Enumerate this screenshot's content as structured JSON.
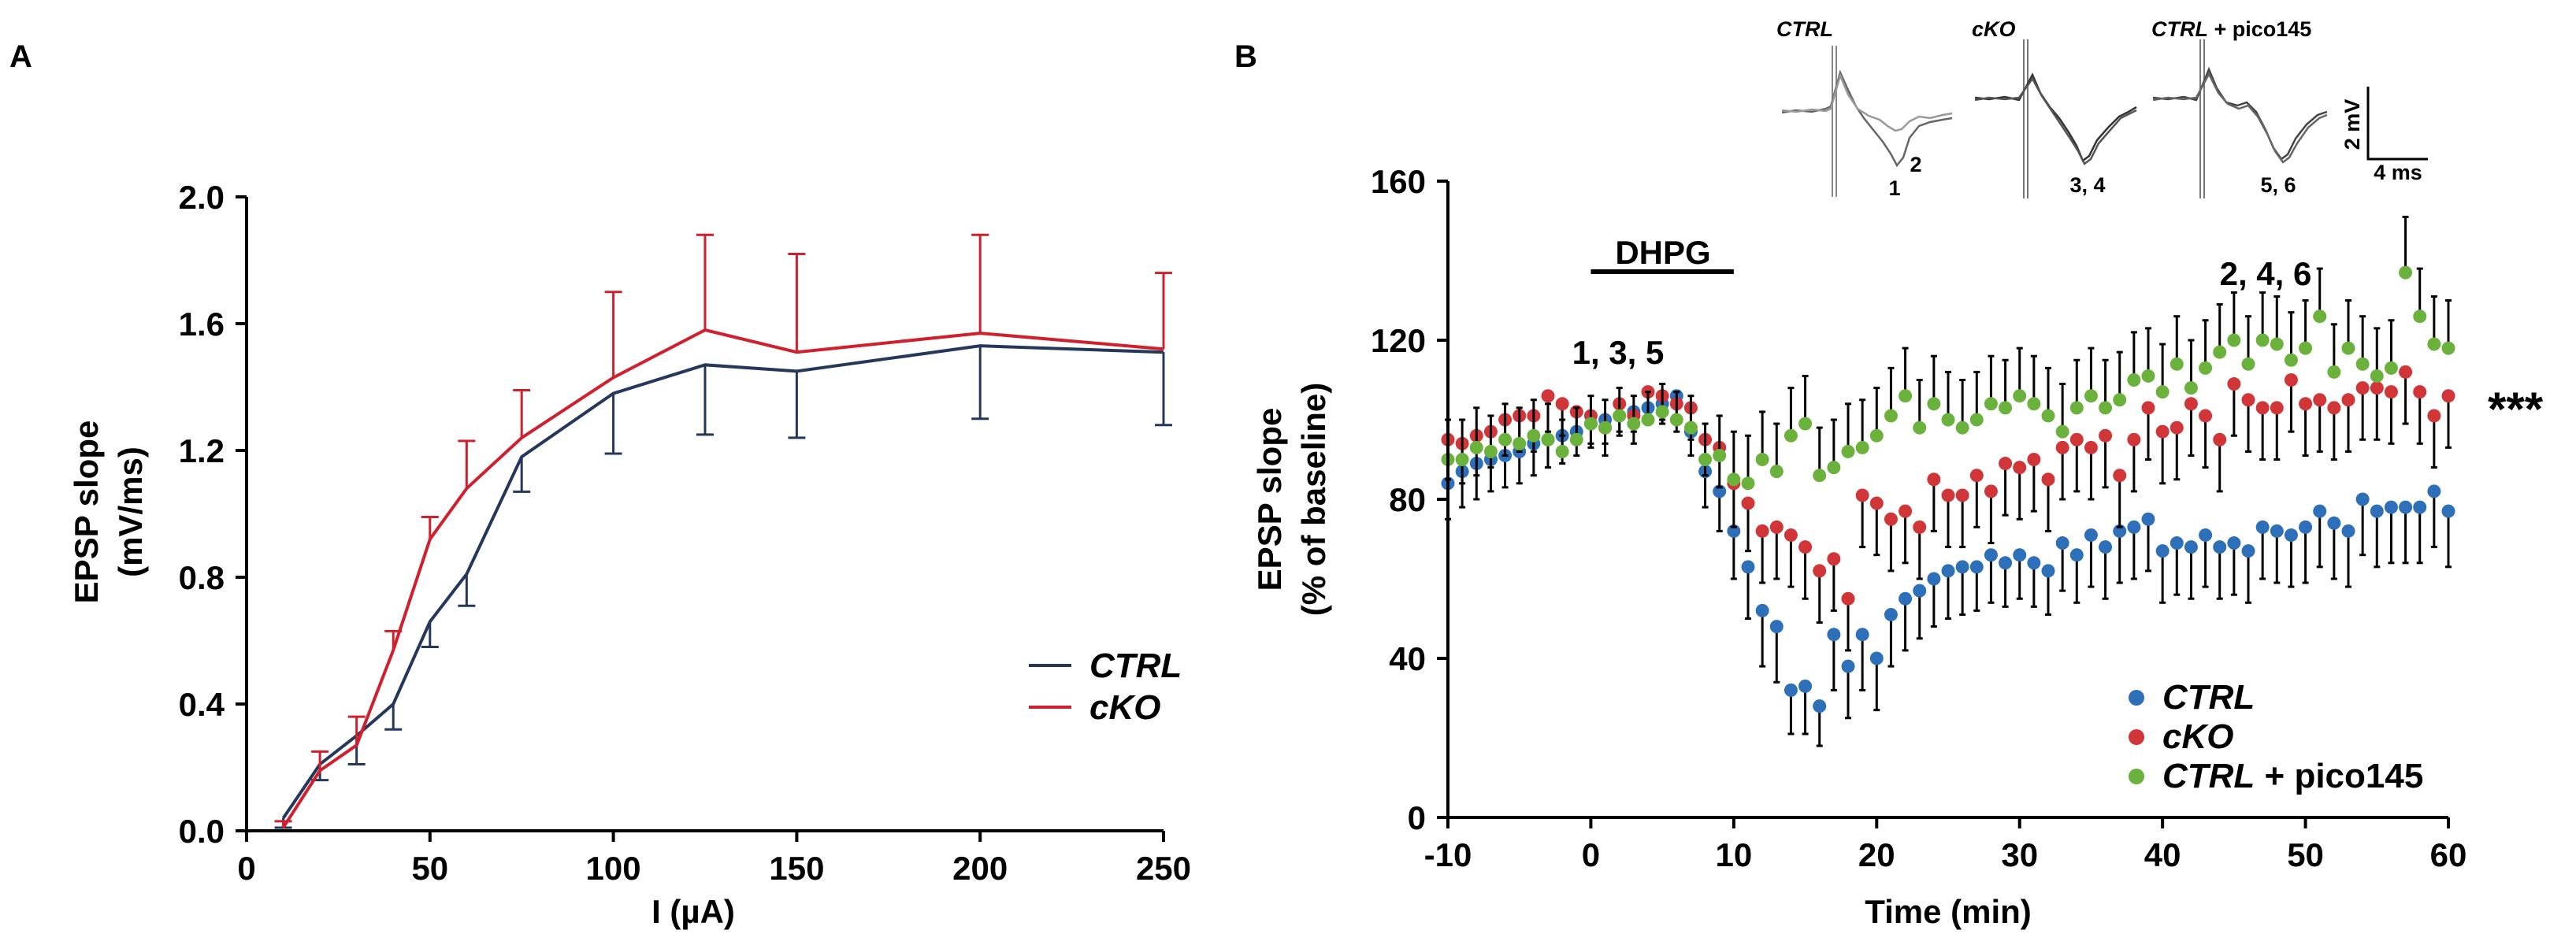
{
  "chart_data": [
    {
      "panel": "A",
      "type": "line",
      "xlabel": "I (µA)",
      "ylabel_line1": "EPSP slope",
      "ylabel_line2": "(mV/ms)",
      "xlim": [
        0,
        250
      ],
      "ylim": [
        0,
        2.0
      ],
      "xticks": [
        0,
        50,
        100,
        150,
        200,
        250
      ],
      "yticks": [
        0.0,
        0.4,
        0.8,
        1.2,
        1.6,
        2.0
      ],
      "xtick_labels": [
        "0",
        "50",
        "100",
        "150",
        "200",
        "250"
      ],
      "ytick_labels": [
        "0.0",
        "0.4",
        "0.8",
        "1.2",
        "1.6",
        "2.0"
      ],
      "x": [
        10,
        20,
        30,
        40,
        50,
        60,
        75,
        100,
        125,
        150,
        200,
        250
      ],
      "series": [
        {
          "name": "CTRL",
          "color": "#25385c",
          "values": [
            0.04,
            0.21,
            0.3,
            0.4,
            0.66,
            0.81,
            1.18,
            1.38,
            1.47,
            1.45,
            1.53,
            1.51
          ],
          "errors": [
            0.03,
            0.05,
            0.09,
            0.08,
            0.08,
            0.1,
            0.11,
            0.19,
            0.22,
            0.21,
            0.23,
            0.23
          ],
          "error_direction": "down"
        },
        {
          "name": "cKO",
          "color": "#d0202e",
          "values": [
            0.01,
            0.19,
            0.27,
            0.57,
            0.92,
            1.08,
            1.24,
            1.43,
            1.58,
            1.51,
            1.57,
            1.52
          ],
          "errors": [
            0.02,
            0.06,
            0.09,
            0.06,
            0.07,
            0.15,
            0.15,
            0.27,
            0.3,
            0.31,
            0.31,
            0.24
          ],
          "error_direction": "up"
        }
      ],
      "legend": [
        "CTRL",
        "cKO"
      ],
      "legend_position": "lower-right"
    },
    {
      "panel": "B",
      "type": "scatter",
      "xlabel": "Time (min)",
      "ylabel_line1": "EPSP slope",
      "ylabel_line2": "(% of baseline)",
      "xlim": [
        -10,
        60
      ],
      "ylim": [
        0,
        160
      ],
      "xticks": [
        -10,
        0,
        10,
        20,
        30,
        40,
        50,
        60
      ],
      "yticks": [
        0,
        40,
        80,
        120,
        160
      ],
      "xtick_labels": [
        "-10",
        "0",
        "10",
        "20",
        "30",
        "40",
        "50",
        "60"
      ],
      "ytick_labels": [
        "0",
        "40",
        "80",
        "120",
        "160"
      ],
      "x": [
        -10,
        -9,
        -8,
        -7,
        -6,
        -5,
        -4,
        -3,
        -2,
        -1,
        0,
        1,
        2,
        3,
        4,
        5,
        6,
        7,
        8,
        9,
        10,
        11,
        12,
        13,
        14,
        15,
        16,
        17,
        18,
        19,
        20,
        21,
        22,
        23,
        24,
        25,
        26,
        27,
        28,
        29,
        30,
        31,
        32,
        33,
        34,
        35,
        36,
        37,
        38,
        39,
        40,
        41,
        42,
        43,
        44,
        45,
        46,
        47,
        48,
        49,
        50,
        51,
        52,
        53,
        54,
        55,
        56,
        57,
        58,
        59,
        60
      ],
      "series": [
        {
          "name": "CTRL",
          "color": "#2d6fb8",
          "values": [
            84,
            87,
            89,
            90,
            91,
            92,
            94,
            95,
            96,
            97,
            99,
            100,
            101,
            102,
            103,
            104,
            106,
            97,
            87,
            82,
            72,
            63,
            52,
            48,
            32,
            33,
            28,
            46,
            38,
            46,
            40,
            51,
            55,
            57,
            60,
            62,
            63,
            63,
            66,
            64,
            66,
            64,
            62,
            69,
            66,
            71,
            68,
            72,
            73,
            75,
            67,
            69,
            68,
            71,
            68,
            69,
            67,
            73,
            72,
            71,
            73,
            77,
            74,
            72,
            80,
            77,
            78,
            78,
            78,
            82,
            77
          ],
          "errors": [
            9,
            9,
            9,
            8,
            8,
            8,
            8,
            7,
            7,
            6,
            6,
            6,
            5,
            5,
            4,
            4,
            3,
            6,
            9,
            10,
            12,
            13,
            14,
            14,
            11,
            12,
            10,
            14,
            13,
            14,
            13,
            13,
            13,
            12,
            12,
            12,
            12,
            11,
            12,
            11,
            11,
            11,
            11,
            12,
            12,
            13,
            13,
            13,
            13,
            13,
            13,
            13,
            13,
            13,
            13,
            13,
            13,
            13,
            13,
            13,
            14,
            14,
            14,
            14,
            14,
            14,
            14,
            14,
            14,
            14,
            14
          ],
          "error_direction": "down"
        },
        {
          "name": "cKO",
          "color": "#d03538",
          "values": [
            95,
            94,
            96,
            97,
            100,
            101,
            101,
            106,
            104,
            102,
            101,
            98,
            104,
            101,
            107,
            106,
            104,
            103,
            95,
            93,
            84,
            79,
            72,
            73,
            71,
            68,
            62,
            65,
            55,
            81,
            79,
            75,
            77,
            73,
            85,
            81,
            81,
            86,
            82,
            89,
            88,
            90,
            85,
            93,
            95,
            93,
            96,
            86,
            95,
            103,
            97,
            98,
            104,
            101,
            95,
            109,
            105,
            103,
            103,
            110,
            104,
            105,
            103,
            105,
            108,
            108,
            107,
            112,
            107,
            101,
            106
          ],
          "errors": [
            10,
            10,
            10,
            9,
            9,
            9,
            9,
            9,
            8,
            8,
            7,
            7,
            7,
            7,
            7,
            7,
            7,
            8,
            9,
            10,
            11,
            12,
            13,
            13,
            13,
            13,
            13,
            13,
            13,
            13,
            13,
            13,
            13,
            13,
            13,
            13,
            13,
            13,
            13,
            13,
            13,
            13,
            13,
            13,
            13,
            13,
            13,
            13,
            13,
            13,
            13,
            13,
            13,
            13,
            13,
            13,
            13,
            13,
            13,
            13,
            13,
            13,
            13,
            13,
            13,
            13,
            13,
            13,
            13,
            13,
            13
          ],
          "error_direction": "down"
        },
        {
          "name": "CTRL + pico145",
          "color": "#6bb23c",
          "values": [
            90,
            90,
            93,
            92,
            95,
            94,
            96,
            95,
            92,
            95,
            99,
            98,
            101,
            99,
            100,
            102,
            100,
            98,
            90,
            91,
            85,
            84,
            90,
            87,
            96,
            99,
            86,
            88,
            92,
            93,
            96,
            101,
            106,
            98,
            104,
            100,
            98,
            100,
            104,
            103,
            106,
            104,
            101,
            97,
            103,
            106,
            103,
            105,
            110,
            111,
            107,
            114,
            108,
            113,
            117,
            120,
            114,
            120,
            119,
            115,
            118,
            126,
            112,
            118,
            114,
            111,
            113,
            137,
            126,
            119,
            118
          ],
          "errors": [
            10,
            10,
            10,
            9,
            9,
            9,
            9,
            9,
            8,
            8,
            7,
            7,
            7,
            7,
            7,
            7,
            7,
            8,
            9,
            10,
            12,
            12,
            12,
            12,
            12,
            12,
            12,
            12,
            12,
            12,
            12,
            12,
            12,
            12,
            12,
            12,
            12,
            12,
            12,
            12,
            12,
            12,
            12,
            12,
            12,
            12,
            12,
            12,
            12,
            12,
            12,
            12,
            12,
            12,
            12,
            12,
            12,
            12,
            12,
            12,
            12,
            12,
            12,
            12,
            12,
            12,
            12,
            14,
            12,
            12,
            12
          ],
          "error_direction": "up"
        }
      ],
      "legend": [
        {
          "italic": "CTRL",
          "rest": ""
        },
        {
          "italic": "cKO",
          "rest": ""
        },
        {
          "italic": "CTRL",
          "rest": " + pico145"
        }
      ],
      "legend_position": "lower-right",
      "drug_label": "DHPG",
      "drug_interval": [
        0,
        10
      ],
      "annotation_left": "1, 3, 5",
      "annotation_right": "2, 4, 6",
      "significance": "***",
      "inset": {
        "labels": [
          {
            "italic": "CTRL",
            "rest": ""
          },
          {
            "italic": "cKO",
            "rest": ""
          },
          {
            "italic": "CTRL",
            "rest": " + pico145"
          }
        ],
        "trace_numbers": [
          "1",
          "2",
          "3, 4",
          "5, 6"
        ],
        "scale_y": "2 mV",
        "scale_x": "4 ms"
      }
    }
  ]
}
